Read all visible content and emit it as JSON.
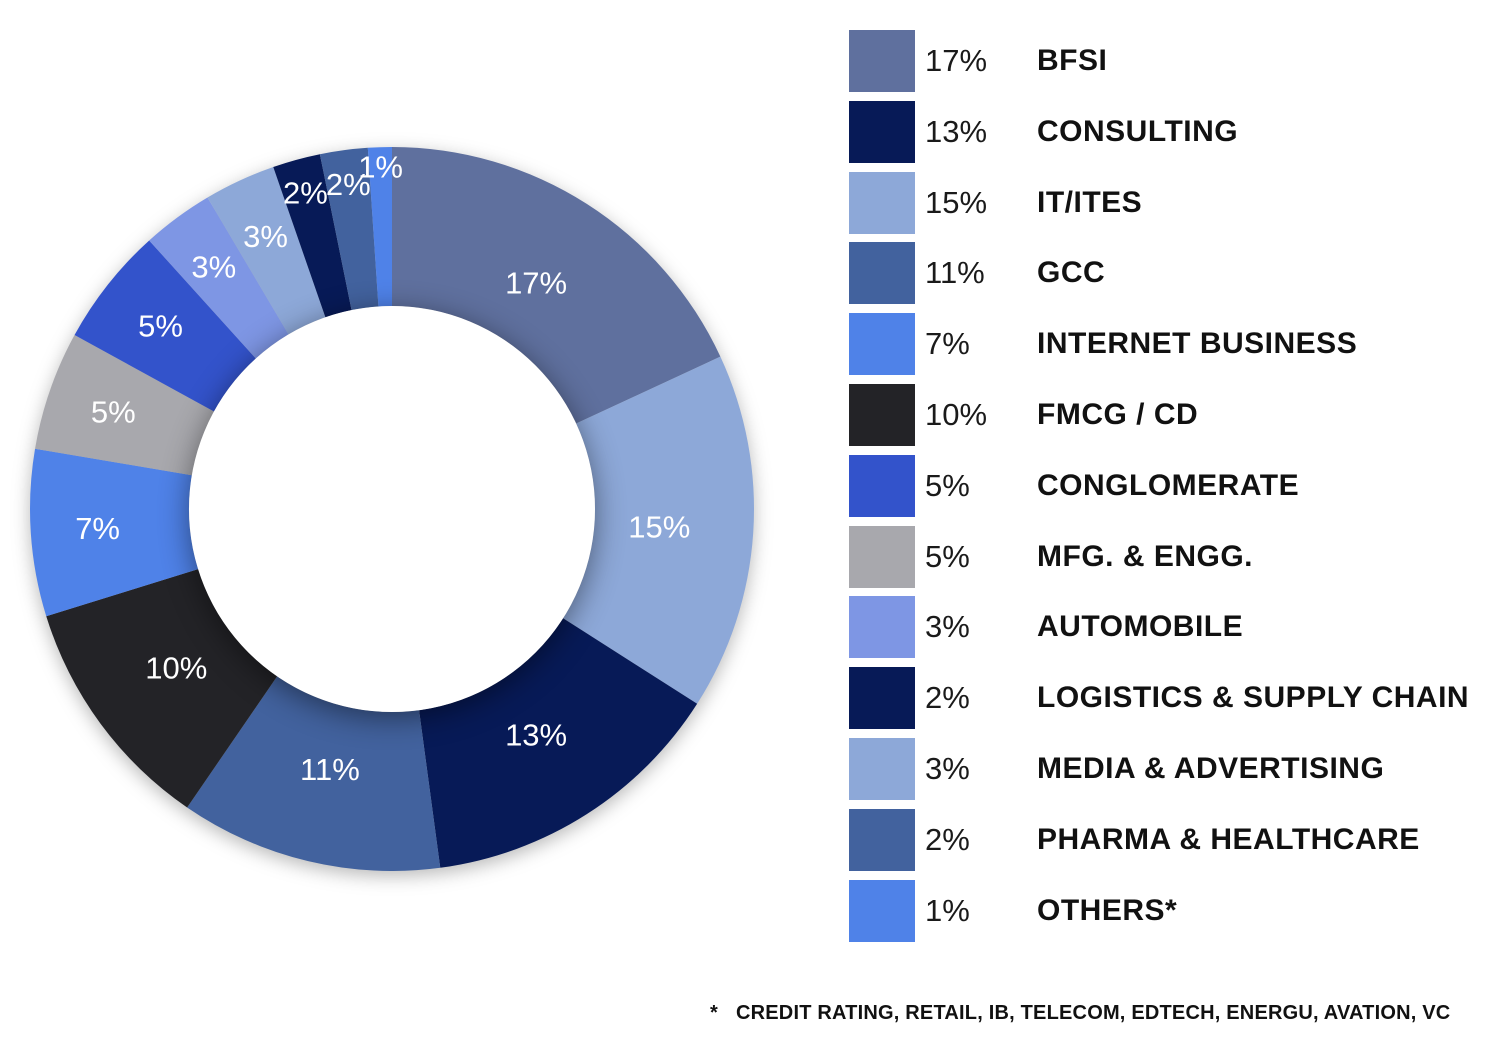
{
  "chart_data": {
    "type": "pie",
    "subtype": "donut",
    "unit": "%",
    "label_color": "#ffffff",
    "legend_position": "right",
    "direction": "clockwise",
    "start_angle_deg": 0,
    "slices": [
      {
        "name": "BFSI",
        "value": 17,
        "pct_label": "17%",
        "color": "#5f709e"
      },
      {
        "name": "CONSULTING",
        "value": 13,
        "pct_label": "13%",
        "color": "#071a57"
      },
      {
        "name": "IT/ITES",
        "value": 15,
        "pct_label": "15%",
        "color": "#8da8d8"
      },
      {
        "name": "GCC",
        "value": 11,
        "pct_label": "11%",
        "color": "#42629e"
      },
      {
        "name": "INTERNET BUSINESS",
        "value": 7,
        "pct_label": "7%",
        "color": "#4f82e8"
      },
      {
        "name": "FMCG / CD",
        "value": 10,
        "pct_label": "10%",
        "color": "#232327"
      },
      {
        "name": "CONGLOMERATE",
        "value": 5,
        "pct_label": "5%",
        "color": "#3353cb"
      },
      {
        "name": "MFG. & ENGG.",
        "value": 5,
        "pct_label": "5%",
        "color": "#a8a8ad"
      },
      {
        "name": "AUTOMOBILE",
        "value": 3,
        "pct_label": "3%",
        "color": "#7e96e4"
      },
      {
        "name": "LOGISTICS & SUPPLY CHAIN",
        "value": 2,
        "pct_label": "2%",
        "color": "#071a57"
      },
      {
        "name": "MEDIA & ADVERTISING",
        "value": 3,
        "pct_label": "3%",
        "color": "#8da8d8"
      },
      {
        "name": "PHARMA & HEALTHCARE",
        "value": 2,
        "pct_label": "2%",
        "color": "#42629e"
      },
      {
        "name": "OTHERS*",
        "value": 1,
        "pct_label": "1%",
        "color": "#4f82e8"
      }
    ],
    "clockwise_order": [
      "BFSI",
      "IT/ITES",
      "CONSULTING",
      "GCC",
      "FMCG / CD",
      "INTERNET BUSINESS",
      "MFG. & ENGG.",
      "CONGLOMERATE",
      "AUTOMOBILE",
      "MEDIA & ADVERTISING",
      "LOGISTICS & SUPPLY CHAIN",
      "PHARMA & HEALTHCARE",
      "OTHERS*"
    ]
  },
  "footnote": {
    "marker": "*",
    "text": "CREDIT RATING, RETAIL, IB, TELECOM, EDTECH, ENERGU, AVATION, VC"
  }
}
